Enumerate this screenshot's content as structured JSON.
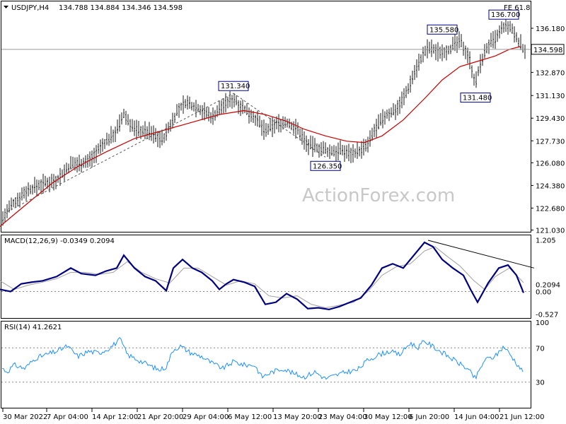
{
  "header": {
    "symbol": "USDJPY,H4",
    "ohlc": "134.788 134.884 134.346 134.598",
    "fib_label": "FE 61.8"
  },
  "watermark": "ActionForex.com",
  "colors": {
    "price_bar": "#1a1a1a",
    "moving_average": "#cc0000",
    "macd_line": "#000080",
    "macd_signal": "#a0a0a0",
    "rsi_line": "#1e90ff",
    "trend_dash": "#555555",
    "grid_dotted": "#888888",
    "label_box": "#000080",
    "current_price_box": "#ffffff"
  },
  "chart_data": [
    {
      "type": "candlestick",
      "panel": "price",
      "title": "USDJPY,H4",
      "ylim": [
        120.9,
        137.4
      ],
      "yticks": [
        "136.180",
        "134.598",
        "132.870",
        "131.130",
        "129.430",
        "127.730",
        "126.080",
        "124.380",
        "122.680",
        "121.030"
      ],
      "ytick_values": [
        136.18,
        134.598,
        132.87,
        131.13,
        129.43,
        127.73,
        126.08,
        124.38,
        122.68,
        121.03
      ],
      "current_price": "134.598",
      "swing_labels": [
        {
          "text": "131.340",
          "x": "2022-05-05",
          "y": 131.34
        },
        {
          "text": "126.350",
          "x": "2022-05-24",
          "y": 126.35
        },
        {
          "text": "135.580",
          "x": "2022-06-08",
          "y": 135.58
        },
        {
          "text": "131.480",
          "x": "2022-06-16",
          "y": 131.48
        },
        {
          "text": "136.700",
          "x": "2022-06-22",
          "y": 136.7
        }
      ],
      "moving_average_path": [
        [
          0,
          121.3
        ],
        [
          20,
          122.2
        ],
        [
          45,
          123.3
        ],
        [
          75,
          124.6
        ],
        [
          110,
          125.8
        ],
        [
          150,
          126.9
        ],
        [
          190,
          127.9
        ],
        [
          230,
          128.5
        ],
        [
          270,
          129.1
        ],
        [
          310,
          129.7
        ],
        [
          345,
          130.0
        ],
        [
          375,
          129.7
        ],
        [
          405,
          129.2
        ],
        [
          430,
          128.6
        ],
        [
          460,
          128.1
        ],
        [
          490,
          127.7
        ],
        [
          515,
          127.6
        ],
        [
          540,
          128.1
        ],
        [
          570,
          129.3
        ],
        [
          600,
          130.9
        ],
        [
          625,
          132.3
        ],
        [
          650,
          133.3
        ],
        [
          675,
          133.7
        ],
        [
          700,
          134.1
        ],
        [
          720,
          134.6
        ],
        [
          735,
          134.8
        ]
      ],
      "price_envelope": [
        [
          0,
          121.6
        ],
        [
          15,
          122.8
        ],
        [
          35,
          123.9
        ],
        [
          55,
          124.4
        ],
        [
          80,
          124.8
        ],
        [
          100,
          125.9
        ],
        [
          125,
          126.2
        ],
        [
          145,
          127.4
        ],
        [
          165,
          128.5
        ],
        [
          175,
          129.7
        ],
        [
          190,
          128.6
        ],
        [
          210,
          128.4
        ],
        [
          230,
          127.8
        ],
        [
          250,
          129.9
        ],
        [
          262,
          130.6
        ],
        [
          280,
          130.2
        ],
        [
          300,
          129.5
        ],
        [
          315,
          130.4
        ],
        [
          330,
          130.9
        ],
        [
          345,
          130.1
        ],
        [
          360,
          129.5
        ],
        [
          375,
          128.4
        ],
        [
          390,
          129.0
        ],
        [
          405,
          129.1
        ],
        [
          420,
          128.6
        ],
        [
          435,
          127.4
        ],
        [
          450,
          127.2
        ],
        [
          465,
          126.9
        ],
        [
          480,
          127.0
        ],
        [
          495,
          126.8
        ],
        [
          510,
          127.0
        ],
        [
          520,
          127.4
        ],
        [
          530,
          128.6
        ],
        [
          545,
          129.6
        ],
        [
          560,
          130.1
        ],
        [
          575,
          131.4
        ],
        [
          585,
          132.8
        ],
        [
          595,
          133.9
        ],
        [
          605,
          134.7
        ],
        [
          620,
          134.4
        ],
        [
          635,
          134.6
        ],
        [
          650,
          135.2
        ],
        [
          662,
          134.2
        ],
        [
          672,
          132.0
        ],
        [
          680,
          133.7
        ],
        [
          690,
          134.9
        ],
        [
          700,
          135.3
        ],
        [
          712,
          136.3
        ],
        [
          722,
          136.2
        ],
        [
          732,
          135.3
        ],
        [
          740,
          134.6
        ]
      ],
      "hlines": [
        134.598
      ],
      "trendlines": [
        {
          "from": [
            10,
            122.4
          ],
          "to": [
            330,
            131.3
          ]
        },
        {
          "from": [
            330,
            131.3
          ],
          "to": [
            460,
            126.5
          ]
        }
      ]
    },
    {
      "type": "line",
      "panel": "macd",
      "title": "MACD(12,26,9) -0.0349 0.2094",
      "ylim": [
        -0.62,
        1.3
      ],
      "yticks": [
        "1.205",
        "0.00",
        "-0.527"
      ],
      "ytick_values": [
        1.205,
        0.0,
        -0.527
      ],
      "extra_label": "0.2094",
      "series": [
        {
          "role": "macd",
          "values": [
            [
              0,
              0.05
            ],
            [
              15,
              0.0
            ],
            [
              30,
              0.18
            ],
            [
              45,
              0.22
            ],
            [
              60,
              0.25
            ],
            [
              80,
              0.35
            ],
            [
              100,
              0.55
            ],
            [
              115,
              0.42
            ],
            [
              135,
              0.38
            ],
            [
              150,
              0.48
            ],
            [
              165,
              0.55
            ],
            [
              175,
              0.85
            ],
            [
              190,
              0.55
            ],
            [
              205,
              0.35
            ],
            [
              220,
              0.25
            ],
            [
              235,
              0.02
            ],
            [
              245,
              0.55
            ],
            [
              258,
              0.75
            ],
            [
              272,
              0.55
            ],
            [
              285,
              0.45
            ],
            [
              300,
              0.25
            ],
            [
              310,
              0.05
            ],
            [
              320,
              0.18
            ],
            [
              330,
              0.28
            ],
            [
              345,
              0.22
            ],
            [
              360,
              0.12
            ],
            [
              375,
              -0.3
            ],
            [
              390,
              -0.25
            ],
            [
              405,
              -0.05
            ],
            [
              420,
              -0.18
            ],
            [
              435,
              -0.4
            ],
            [
              450,
              -0.38
            ],
            [
              465,
              -0.42
            ],
            [
              480,
              -0.35
            ],
            [
              495,
              -0.25
            ],
            [
              510,
              -0.15
            ],
            [
              525,
              0.15
            ],
            [
              540,
              0.55
            ],
            [
              555,
              0.65
            ],
            [
              570,
              0.55
            ],
            [
              585,
              0.85
            ],
            [
              600,
              1.15
            ],
            [
              612,
              1.05
            ],
            [
              625,
              0.75
            ],
            [
              640,
              0.55
            ],
            [
              655,
              0.38
            ],
            [
              665,
              0.05
            ],
            [
              675,
              -0.25
            ],
            [
              690,
              0.2
            ],
            [
              705,
              0.55
            ],
            [
              718,
              0.62
            ],
            [
              730,
              0.38
            ],
            [
              740,
              -0.03
            ]
          ]
        },
        {
          "role": "signal",
          "values": [
            [
              0,
              0.25
            ],
            [
              20,
              0.05
            ],
            [
              40,
              0.15
            ],
            [
              60,
              0.22
            ],
            [
              80,
              0.3
            ],
            [
              100,
              0.45
            ],
            [
              120,
              0.45
            ],
            [
              140,
              0.4
            ],
            [
              160,
              0.45
            ],
            [
              180,
              0.7
            ],
            [
              200,
              0.45
            ],
            [
              220,
              0.3
            ],
            [
              240,
              0.2
            ],
            [
              260,
              0.55
            ],
            [
              280,
              0.55
            ],
            [
              300,
              0.35
            ],
            [
              320,
              0.15
            ],
            [
              340,
              0.25
            ],
            [
              360,
              0.18
            ],
            [
              380,
              -0.1
            ],
            [
              400,
              -0.15
            ],
            [
              420,
              -0.1
            ],
            [
              440,
              -0.3
            ],
            [
              460,
              -0.38
            ],
            [
              480,
              -0.32
            ],
            [
              500,
              -0.25
            ],
            [
              520,
              0.0
            ],
            [
              540,
              0.38
            ],
            [
              560,
              0.58
            ],
            [
              580,
              0.65
            ],
            [
              600,
              0.95
            ],
            [
              615,
              1.05
            ],
            [
              630,
              0.85
            ],
            [
              650,
              0.6
            ],
            [
              670,
              0.25
            ],
            [
              685,
              0.05
            ],
            [
              700,
              0.35
            ],
            [
              720,
              0.55
            ],
            [
              740,
              0.21
            ]
          ]
        }
      ],
      "trendlines": [
        {
          "from": [
            605,
            1.2
          ],
          "to": [
            755,
            0.55
          ]
        }
      ]
    },
    {
      "type": "line",
      "panel": "rsi",
      "title": "RSI(14) 41.2621",
      "ylim": [
        0,
        100
      ],
      "yticks": [
        "100",
        "70",
        "30"
      ],
      "ytick_values": [
        100,
        70,
        30
      ],
      "levels": [
        70,
        30
      ],
      "series": [
        {
          "role": "rsi",
          "values": [
            [
              0,
              48
            ],
            [
              10,
              42
            ],
            [
              20,
              50
            ],
            [
              35,
              46
            ],
            [
              50,
              58
            ],
            [
              65,
              62
            ],
            [
              80,
              66
            ],
            [
              95,
              72
            ],
            [
              110,
              60
            ],
            [
              125,
              66
            ],
            [
              140,
              64
            ],
            [
              155,
              70
            ],
            [
              170,
              80
            ],
            [
              180,
              62
            ],
            [
              195,
              56
            ],
            [
              210,
              50
            ],
            [
              225,
              44
            ],
            [
              235,
              48
            ],
            [
              245,
              68
            ],
            [
              255,
              72
            ],
            [
              270,
              64
            ],
            [
              285,
              60
            ],
            [
              300,
              52
            ],
            [
              315,
              46
            ],
            [
              330,
              54
            ],
            [
              345,
              50
            ],
            [
              360,
              50
            ],
            [
              370,
              36
            ],
            [
              385,
              42
            ],
            [
              400,
              46
            ],
            [
              415,
              40
            ],
            [
              430,
              36
            ],
            [
              445,
              42
            ],
            [
              460,
              34
            ],
            [
              475,
              38
            ],
            [
              490,
              42
            ],
            [
              505,
              44
            ],
            [
              520,
              56
            ],
            [
              535,
              62
            ],
            [
              550,
              66
            ],
            [
              565,
              62
            ],
            [
              580,
              76
            ],
            [
              590,
              70
            ],
            [
              600,
              78
            ],
            [
              615,
              70
            ],
            [
              630,
              62
            ],
            [
              645,
              54
            ],
            [
              660,
              46
            ],
            [
              672,
              34
            ],
            [
              685,
              56
            ],
            [
              700,
              60
            ],
            [
              712,
              72
            ],
            [
              725,
              58
            ],
            [
              740,
              41
            ]
          ]
        }
      ]
    }
  ],
  "x_axis": {
    "tick_labels": [
      "30 Mar 2022",
      "7 Apr 04:00",
      "14 Apr 12:00",
      "21 Apr 20:00",
      "29 Apr 04:00",
      "6 May 12:00",
      "13 May 20:00",
      "23 May 04:00",
      "30 May 12:00",
      "6 Jun 20:00",
      "14 Jun 04:00",
      "21 Jun 12:00"
    ]
  }
}
